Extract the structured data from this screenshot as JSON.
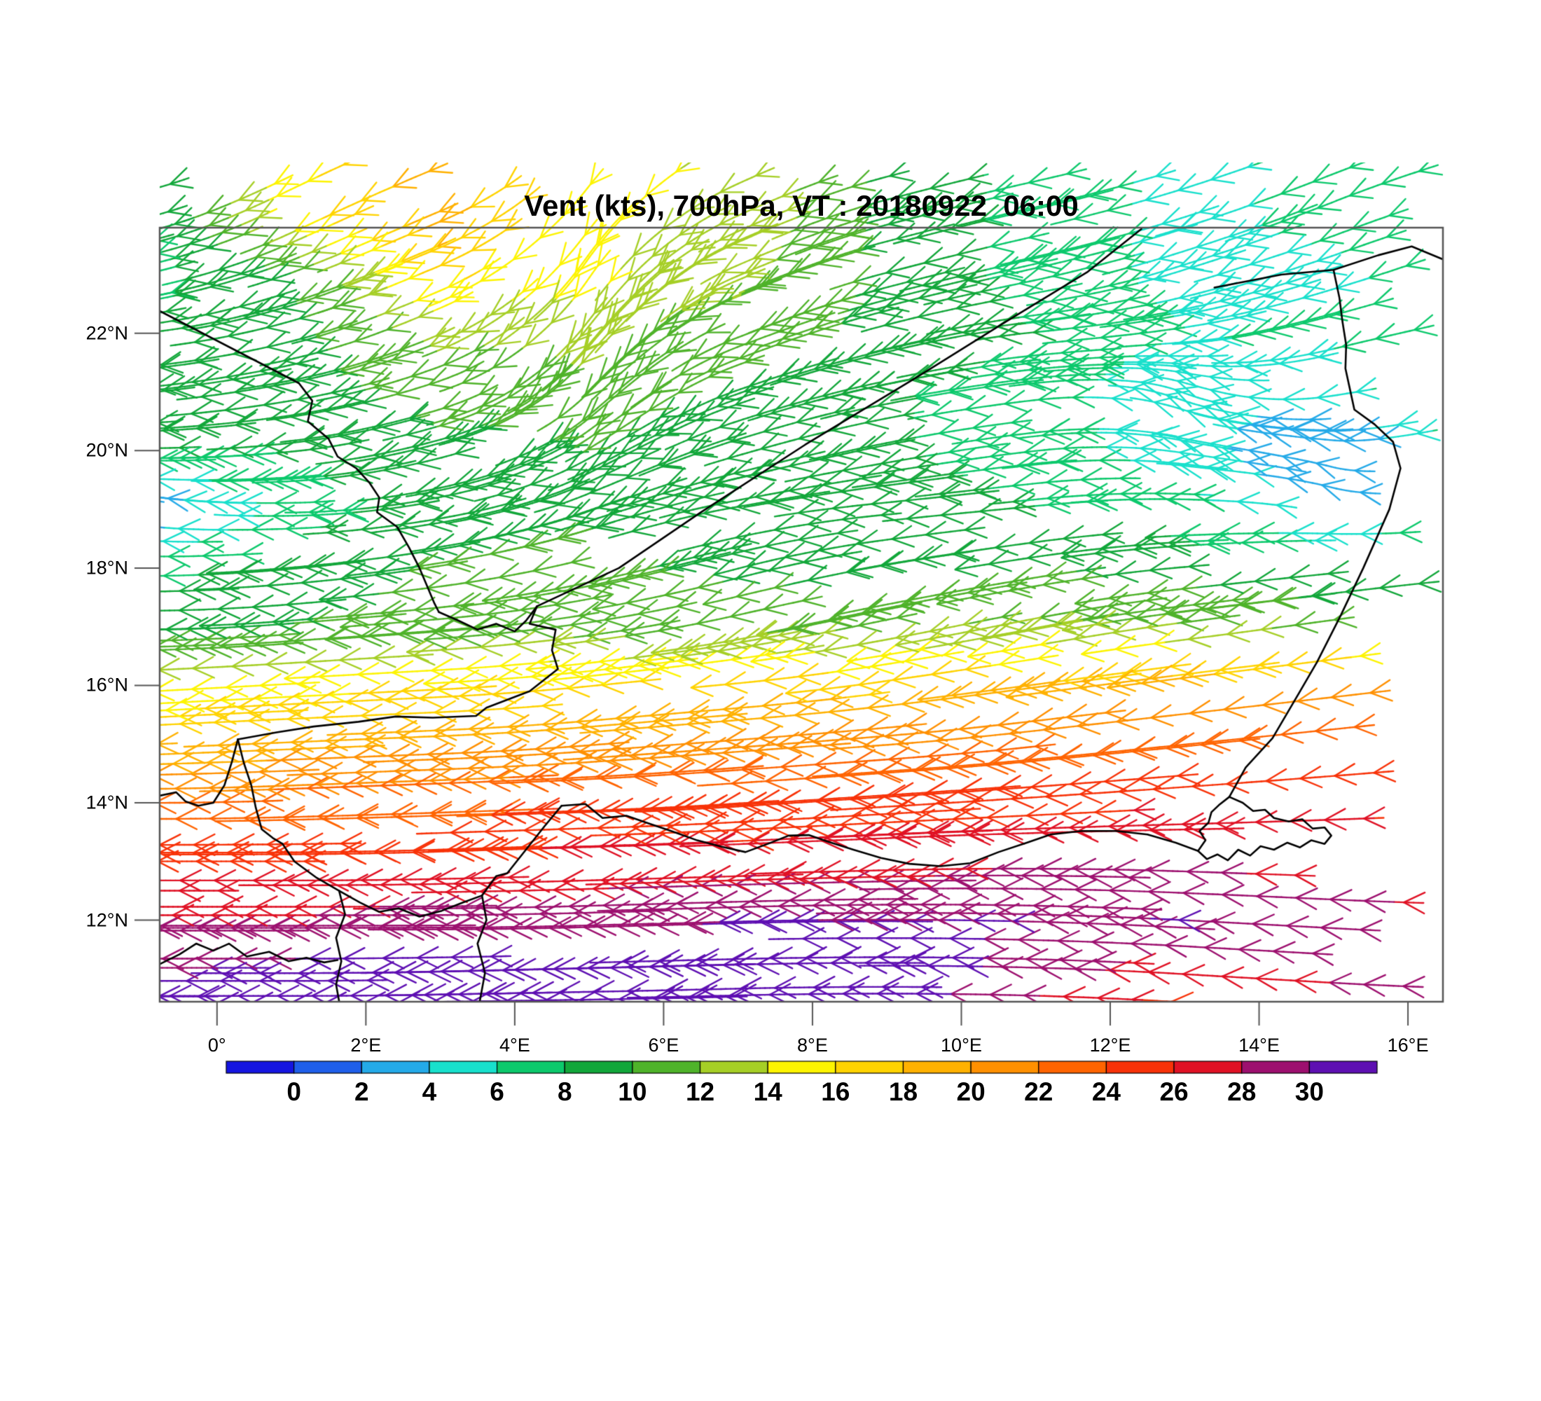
{
  "chart_data": {
    "type": "wind_barbs_map",
    "title": "Vent (kts), 700hPa, VT : 20180922  06:00",
    "variable": "Vent",
    "units": "kts",
    "level": "700hPa",
    "valid_time": "20180922 06:00",
    "lon_range": [
      -0.77,
      16.47
    ],
    "lat_range": [
      10.61,
      23.8
    ],
    "x_ticks": [
      {
        "label": "0°",
        "lon": 0
      },
      {
        "label": "2°E",
        "lon": 2
      },
      {
        "label": "4°E",
        "lon": 4
      },
      {
        "label": "6°E",
        "lon": 6
      },
      {
        "label": "8°E",
        "lon": 8
      },
      {
        "label": "10°E",
        "lon": 10
      },
      {
        "label": "12°E",
        "lon": 12
      },
      {
        "label": "14°E",
        "lon": 14
      },
      {
        "label": "16°E",
        "lon": 16
      }
    ],
    "y_ticks": [
      {
        "label": "12°N",
        "lat": 12
      },
      {
        "label": "14°N",
        "lat": 14
      },
      {
        "label": "16°N",
        "lat": 16
      },
      {
        "label": "18°N",
        "lat": 18
      },
      {
        "label": "20°N",
        "lat": 20
      },
      {
        "label": "22°N",
        "lat": 22
      }
    ],
    "colorbar": {
      "tick_labels": [
        "0",
        "2",
        "4",
        "6",
        "8",
        "10",
        "12",
        "14",
        "16",
        "18",
        "20",
        "22",
        "24",
        "26",
        "28",
        "30"
      ],
      "value_min": 0,
      "value_step": 2,
      "colors": [
        "#1515e0",
        "#1f5fea",
        "#24aae8",
        "#18e0cc",
        "#0cc96c",
        "#12a73a",
        "#4fb32a",
        "#a6cf26",
        "#fdf400",
        "#ffd300",
        "#ffb100",
        "#ff9000",
        "#ff6400",
        "#f83208",
        "#e01124",
        "#9d106f",
        "#5e0fb2"
      ]
    },
    "wind_grid": {
      "lons": [
        -1,
        1,
        3,
        5,
        7,
        9,
        11,
        13,
        15,
        17
      ],
      "lats": [
        24,
        23,
        22,
        21,
        20,
        19,
        18,
        17,
        16,
        15,
        14,
        13,
        12,
        11,
        10
      ],
      "u": [
        [
          -7,
          -13,
          -17,
          -8,
          -12,
          -9,
          -7,
          -5,
          -6,
          -8
        ],
        [
          -7,
          -9,
          -15,
          -7,
          -11,
          -9,
          -7,
          -5,
          -5,
          -7
        ],
        [
          -8,
          -9,
          -11,
          -7,
          -10,
          -9,
          -8,
          -6,
          -6,
          -8
        ],
        [
          -8,
          -9,
          -10,
          -7,
          -9,
          -8,
          -7,
          -4,
          -5,
          -8
        ],
        [
          -8,
          -8,
          -9,
          -8,
          -8,
          -8,
          -7,
          -5,
          -1.5,
          -7
        ],
        [
          -1.6,
          -7,
          -9,
          -9,
          -9,
          -9,
          -8,
          -7,
          -3,
          -7
        ],
        [
          -7,
          -9,
          -10,
          -10,
          -9,
          -9,
          -10,
          -9,
          -8,
          -9
        ],
        [
          -9.5,
          -10,
          -10.5,
          -11,
          -11,
          -11.5,
          -12,
          -12,
          -11.5,
          -11
        ],
        [
          -14,
          -15,
          -16,
          -16,
          -17,
          -17,
          -18,
          -19,
          -20,
          -19
        ],
        [
          -18,
          -19,
          -20,
          -20,
          -21,
          -21,
          -22,
          -23,
          -24,
          -23
        ],
        [
          -22,
          -23,
          -23,
          -24,
          -24,
          -25,
          -25,
          -26,
          -26,
          -25
        ],
        [
          -25,
          -26,
          -26,
          -27,
          -27,
          -27,
          -28,
          -28,
          -27,
          -26
        ],
        [
          -28,
          -28,
          -29,
          -29,
          -30,
          -30,
          -30,
          -30,
          -29,
          -28
        ],
        [
          -30,
          -31,
          -32,
          -33,
          -33,
          -32,
          -29,
          -26,
          -28,
          -30
        ],
        [
          -31,
          -32,
          -33,
          -34,
          -33,
          -30,
          -26,
          -24,
          -27,
          -30
        ]
      ],
      "v": [
        [
          -2,
          -8,
          -9,
          -13,
          -7,
          -3,
          -2,
          -2,
          -3,
          -3
        ],
        [
          -2,
          -4,
          -8,
          -13,
          -6,
          -3,
          -2,
          -2,
          -2,
          -3
        ],
        [
          -1,
          -3,
          -6,
          -11,
          -5,
          -3,
          -1,
          -1,
          -2,
          -2
        ],
        [
          -1,
          -2,
          -4,
          -9,
          -4,
          -2,
          -1,
          2,
          -1,
          -2
        ],
        [
          0,
          -1,
          -3,
          -6,
          -3,
          -2,
          -1,
          1,
          0.5,
          -2
        ],
        [
          0.8,
          0,
          -2,
          -4,
          -2,
          -1,
          -1,
          0,
          1,
          -1
        ],
        [
          0,
          -1,
          -2,
          -3,
          -3,
          -2,
          -2,
          -1,
          -1,
          -1
        ],
        [
          0,
          -1,
          -1,
          -2,
          -3,
          -3,
          -3,
          -2,
          -2,
          -2
        ],
        [
          -1,
          -1,
          -1,
          -2,
          -2,
          -3,
          -3,
          -3,
          -3,
          -3
        ],
        [
          -1,
          -1,
          -1,
          -2,
          -2,
          -2,
          -3,
          -3,
          -3,
          -3
        ],
        [
          0,
          -1,
          -1,
          -1,
          -2,
          -2,
          -2,
          -2,
          -2,
          -2
        ],
        [
          0,
          0,
          -1,
          -1,
          -1,
          -1,
          0,
          1,
          1,
          0
        ],
        [
          0,
          0,
          0,
          -1,
          -1,
          0,
          1,
          2,
          2,
          1
        ],
        [
          0,
          0,
          -1,
          -1,
          -1,
          0,
          1,
          2,
          2,
          1
        ],
        [
          0,
          0,
          0,
          0,
          -1,
          0,
          1,
          2,
          2,
          1
        ]
      ]
    },
    "borders": [
      [
        [
          -0.77,
          22.38
        ],
        [
          1.1,
          21.15
        ]
      ],
      [
        [
          1.1,
          21.15
        ],
        [
          1.28,
          20.85
        ],
        [
          1.22,
          20.5
        ],
        [
          1.5,
          20.2
        ],
        [
          1.62,
          19.9
        ],
        [
          1.87,
          19.7
        ],
        [
          2.05,
          19.45
        ],
        [
          2.18,
          19.2
        ],
        [
          2.15,
          18.95
        ],
        [
          2.42,
          18.7
        ],
        [
          2.58,
          18.35
        ],
        [
          2.72,
          18.0
        ],
        [
          2.82,
          17.7
        ],
        [
          2.92,
          17.4
        ],
        [
          2.98,
          17.25
        ]
      ],
      [
        [
          2.98,
          17.25
        ],
        [
          3.25,
          17.1
        ],
        [
          3.5,
          16.95
        ],
        [
          3.75,
          17.05
        ],
        [
          4.0,
          16.92
        ],
        [
          4.15,
          17.1
        ],
        [
          4.3,
          17.35
        ]
      ],
      [
        [
          4.3,
          17.35
        ],
        [
          5.4,
          18.0
        ],
        [
          6.5,
          18.95
        ],
        [
          7.9,
          20.1
        ],
        [
          9.4,
          21.25
        ],
        [
          10.6,
          22.2
        ],
        [
          11.7,
          23.05
        ],
        [
          12.42,
          23.78
        ]
      ],
      [
        [
          4.3,
          17.35
        ],
        [
          4.2,
          17.05
        ],
        [
          4.55,
          16.95
        ],
        [
          4.5,
          16.6
        ],
        [
          4.58,
          16.28
        ],
        [
          4.2,
          15.9
        ],
        [
          3.62,
          15.62
        ],
        [
          3.48,
          15.48
        ],
        [
          2.9,
          15.45
        ],
        [
          2.4,
          15.47
        ],
        [
          1.9,
          15.38
        ],
        [
          1.3,
          15.3
        ],
        [
          0.8,
          15.2
        ],
        [
          0.28,
          15.08
        ]
      ],
      [
        [
          0.28,
          15.08
        ],
        [
          0.36,
          14.68
        ],
        [
          0.46,
          14.3
        ],
        [
          0.52,
          13.92
        ],
        [
          0.6,
          13.55
        ],
        [
          0.75,
          13.4
        ],
        [
          0.88,
          13.3
        ]
      ],
      [
        [
          -0.77,
          14.12
        ],
        [
          -0.55,
          14.18
        ],
        [
          -0.42,
          14.02
        ],
        [
          -0.25,
          13.95
        ],
        [
          -0.05,
          14.0
        ],
        [
          0.1,
          14.3
        ],
        [
          0.2,
          14.7
        ],
        [
          0.28,
          15.08
        ]
      ],
      [
        [
          13.4,
          22.78
        ],
        [
          14.3,
          23.0
        ],
        [
          15.0,
          23.08
        ],
        [
          15.6,
          23.33
        ],
        [
          16.05,
          23.48
        ],
        [
          16.47,
          23.26
        ]
      ],
      [
        [
          15.0,
          23.08
        ],
        [
          15.08,
          22.6
        ],
        [
          15.12,
          22.2
        ],
        [
          15.17,
          21.8
        ],
        [
          15.16,
          21.4
        ],
        [
          15.22,
          21.05
        ],
        [
          15.28,
          20.7
        ],
        [
          15.55,
          20.45
        ],
        [
          15.8,
          20.15
        ],
        [
          15.9,
          19.7
        ],
        [
          15.75,
          19.0
        ],
        [
          15.4,
          18.0
        ],
        [
          15.1,
          17.2
        ],
        [
          14.78,
          16.4
        ],
        [
          14.55,
          15.9
        ],
        [
          14.18,
          15.1
        ],
        [
          13.82,
          14.6
        ],
        [
          13.6,
          14.1
        ]
      ],
      [
        [
          13.6,
          14.1
        ],
        [
          13.78,
          14.0
        ],
        [
          13.92,
          13.86
        ],
        [
          14.08,
          13.88
        ],
        [
          14.2,
          13.74
        ],
        [
          14.4,
          13.68
        ],
        [
          14.58,
          13.72
        ],
        [
          14.72,
          13.56
        ],
        [
          14.88,
          13.58
        ],
        [
          14.97,
          13.44
        ],
        [
          14.88,
          13.3
        ],
        [
          14.7,
          13.36
        ],
        [
          14.55,
          13.24
        ],
        [
          14.38,
          13.32
        ],
        [
          14.2,
          13.2
        ],
        [
          14.02,
          13.26
        ],
        [
          13.88,
          13.1
        ],
        [
          13.72,
          13.2
        ],
        [
          13.58,
          13.02
        ],
        [
          13.44,
          13.12
        ],
        [
          13.3,
          13.04
        ],
        [
          13.18,
          13.18
        ],
        [
          13.28,
          13.36
        ],
        [
          13.2,
          13.52
        ],
        [
          13.32,
          13.66
        ],
        [
          13.36,
          13.84
        ],
        [
          13.46,
          13.96
        ],
        [
          13.6,
          14.1
        ]
      ],
      [
        [
          13.18,
          13.18
        ],
        [
          12.88,
          13.32
        ],
        [
          12.5,
          13.46
        ],
        [
          12.08,
          13.52
        ],
        [
          11.62,
          13.52
        ],
        [
          11.2,
          13.46
        ],
        [
          10.88,
          13.32
        ],
        [
          10.5,
          13.16
        ],
        [
          10.12,
          12.97
        ],
        [
          9.72,
          12.92
        ],
        [
          9.3,
          12.96
        ],
        [
          8.92,
          13.06
        ],
        [
          8.55,
          13.2
        ],
        [
          8.2,
          13.34
        ],
        [
          7.95,
          13.45
        ],
        [
          7.68,
          13.44
        ],
        [
          7.4,
          13.3
        ],
        [
          7.1,
          13.16
        ],
        [
          6.78,
          13.25
        ],
        [
          6.45,
          13.36
        ],
        [
          6.1,
          13.52
        ],
        [
          5.82,
          13.64
        ],
        [
          5.5,
          13.78
        ],
        [
          5.18,
          13.74
        ],
        [
          4.95,
          13.98
        ],
        [
          4.63,
          13.95
        ]
      ],
      [
        [
          4.63,
          13.95
        ],
        [
          4.4,
          13.6
        ],
        [
          4.15,
          13.2
        ],
        [
          3.9,
          12.8
        ],
        [
          3.75,
          12.75
        ],
        [
          3.56,
          12.42
        ]
      ],
      [
        [
          3.56,
          12.42
        ],
        [
          3.62,
          12.0
        ],
        [
          3.5,
          11.6
        ],
        [
          3.6,
          11.1
        ],
        [
          3.53,
          10.62
        ]
      ],
      [
        [
          0.88,
          13.3
        ],
        [
          1.04,
          13.0
        ],
        [
          1.34,
          12.72
        ],
        [
          1.64,
          12.5
        ],
        [
          1.92,
          12.3
        ],
        [
          2.18,
          12.14
        ],
        [
          2.44,
          12.2
        ],
        [
          2.72,
          12.06
        ],
        [
          3.02,
          12.16
        ],
        [
          3.3,
          12.3
        ],
        [
          3.56,
          12.42
        ]
      ],
      [
        [
          1.64,
          12.5
        ],
        [
          1.72,
          12.1
        ],
        [
          1.6,
          11.7
        ],
        [
          1.67,
          11.3
        ],
        [
          1.6,
          10.9
        ],
        [
          1.64,
          10.62
        ]
      ],
      [
        [
          -0.77,
          11.25
        ],
        [
          -0.5,
          11.42
        ],
        [
          -0.28,
          11.6
        ],
        [
          -0.05,
          11.48
        ],
        [
          0.16,
          11.6
        ],
        [
          0.4,
          11.38
        ],
        [
          0.7,
          11.46
        ],
        [
          0.96,
          11.3
        ],
        [
          1.2,
          11.36
        ],
        [
          1.44,
          11.28
        ],
        [
          1.62,
          11.32
        ]
      ]
    ]
  }
}
